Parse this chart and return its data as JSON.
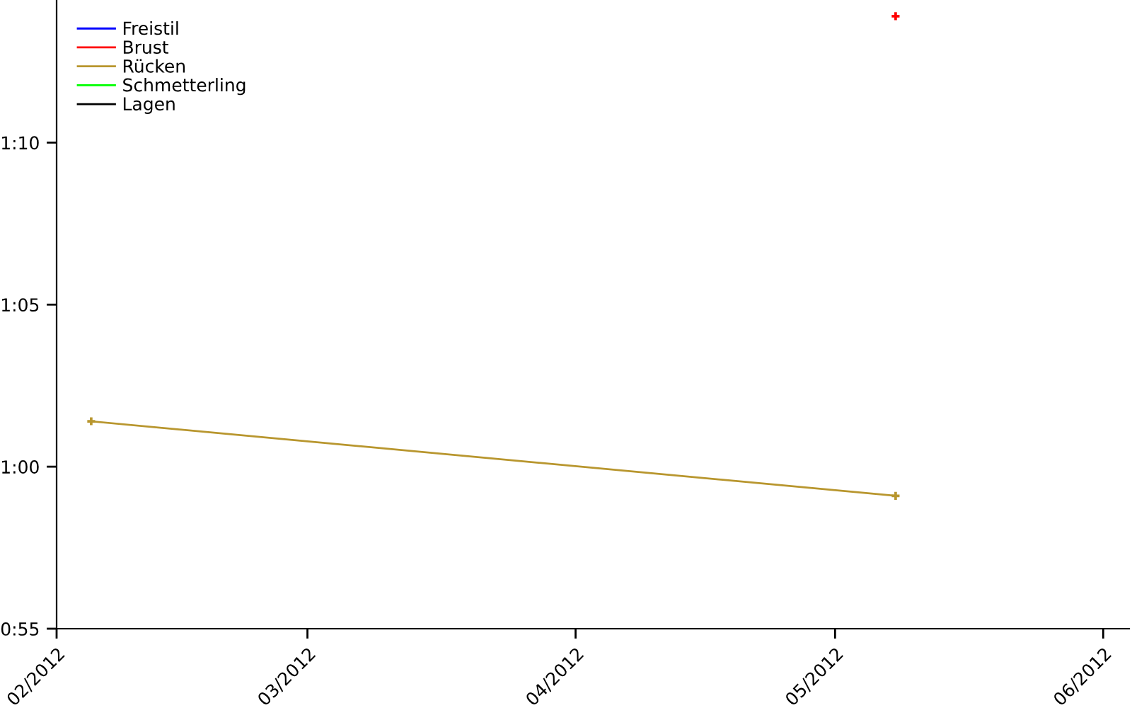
{
  "chart_data": {
    "type": "line",
    "series": [
      {
        "name": "Freistil",
        "color": "#0000ff"
      },
      {
        "name": "Brust",
        "color": "#ff0000",
        "x": [
          "2012-05-08"
        ],
        "values": [
          73.9
        ]
      },
      {
        "name": "Rücken",
        "color": "#b8962e",
        "x": [
          "2012-02-05",
          "2012-05-08"
        ],
        "values": [
          61.4,
          59.1
        ]
      },
      {
        "name": "Schmetterling",
        "color": "#00ff00"
      },
      {
        "name": "Lagen",
        "color": "#000000"
      }
    ],
    "xlim": [
      "2012-02-01",
      "2012-06-04"
    ],
    "xticks": [
      {
        "value": "2012-02-01",
        "label": "02/2012"
      },
      {
        "value": "2012-03-01",
        "label": "03/2012"
      },
      {
        "value": "2012-04-01",
        "label": "04/2012"
      },
      {
        "value": "2012-05-01",
        "label": "05/2012"
      },
      {
        "value": "2012-06-01",
        "label": "06/2012"
      }
    ],
    "ylim": [
      55,
      74.4
    ],
    "yticks": [
      {
        "value": 55,
        "label": "0:55"
      },
      {
        "value": 60,
        "label": "1:00"
      },
      {
        "value": 65,
        "label": "1:05"
      },
      {
        "value": 70,
        "label": "1:10"
      }
    ],
    "marker": "cross",
    "line_style": "solid",
    "grid": false,
    "legend": "top left"
  }
}
